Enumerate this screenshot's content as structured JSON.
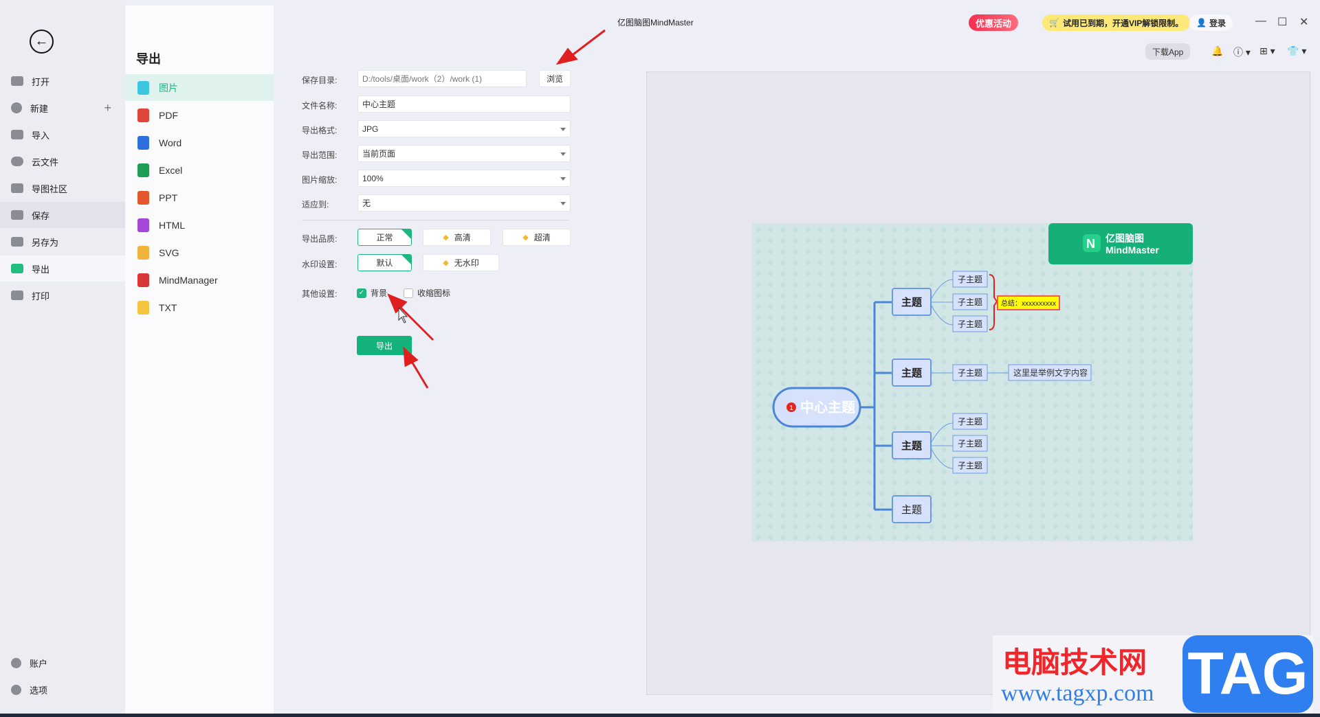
{
  "title": "亿图脑图MindMaster",
  "topbar": {
    "promo": "优惠活动",
    "vip": "试用已到期，开通VIP解锁限制。",
    "login": "登录",
    "download_app": "下载App",
    "min": "—",
    "max": "☐",
    "close": "✕"
  },
  "sidebar": {
    "items": [
      {
        "label": "打开"
      },
      {
        "label": "新建"
      },
      {
        "label": "导入"
      },
      {
        "label": "云文件"
      },
      {
        "label": "导图社区"
      },
      {
        "label": "保存"
      },
      {
        "label": "另存为"
      },
      {
        "label": "导出"
      },
      {
        "label": "打印"
      }
    ],
    "bottom": [
      {
        "label": "账户"
      },
      {
        "label": "选项"
      }
    ]
  },
  "export_panel": {
    "title": "导出",
    "formats": [
      {
        "label": "图片",
        "color": "#3ec6e0"
      },
      {
        "label": "PDF",
        "color": "#e0463a"
      },
      {
        "label": "Word",
        "color": "#2f6fdb"
      },
      {
        "label": "Excel",
        "color": "#1f9d55"
      },
      {
        "label": "PPT",
        "color": "#e2572c"
      },
      {
        "label": "HTML",
        "color": "#a547d8"
      },
      {
        "label": "SVG",
        "color": "#f0b43c"
      },
      {
        "label": "MindManager",
        "color": "#d93636"
      },
      {
        "label": "TXT",
        "color": "#f5c542"
      }
    ]
  },
  "form": {
    "save_dir": {
      "label": "保存目录:",
      "value": "D:/tools/桌面/work（2）/work (1)",
      "browse": "浏览"
    },
    "file_name": {
      "label": "文件名称:",
      "value": "中心主题"
    },
    "format": {
      "label": "导出格式:",
      "value": "JPG"
    },
    "range": {
      "label": "导出范围:",
      "value": "当前页面"
    },
    "scale": {
      "label": "图片缩放:",
      "value": "100%"
    },
    "fit": {
      "label": "适应到:",
      "value": "无"
    },
    "quality": {
      "label": "导出品质:",
      "options": [
        "正常",
        "高清",
        "超清"
      ],
      "selected": "正常"
    },
    "watermark": {
      "label": "水印设置:",
      "options": [
        "默认",
        "无水印"
      ],
      "selected": "默认"
    },
    "other": {
      "label": "其他设置:",
      "background": "背景",
      "background_checked": true,
      "collapse_icon": "收缩图标",
      "collapse_checked": false
    },
    "export_button": "导出"
  },
  "preview": {
    "logo_cn": "亿图脑图",
    "logo_en": "MindMaster",
    "central": "中心主题",
    "central_badge": "1",
    "topic": "主题",
    "subtopic": "子主题",
    "summary": "总结：xxxxxxxxxx",
    "example": "这里是举例文字内容"
  },
  "site_watermark": {
    "cn": "电脑技术网",
    "url": "www.tagxp.com",
    "tag": "TAG"
  },
  "colors": {
    "accent": "#1fb57f",
    "node_border": "#4a86d8",
    "node_fill": "#d6e2fb"
  }
}
